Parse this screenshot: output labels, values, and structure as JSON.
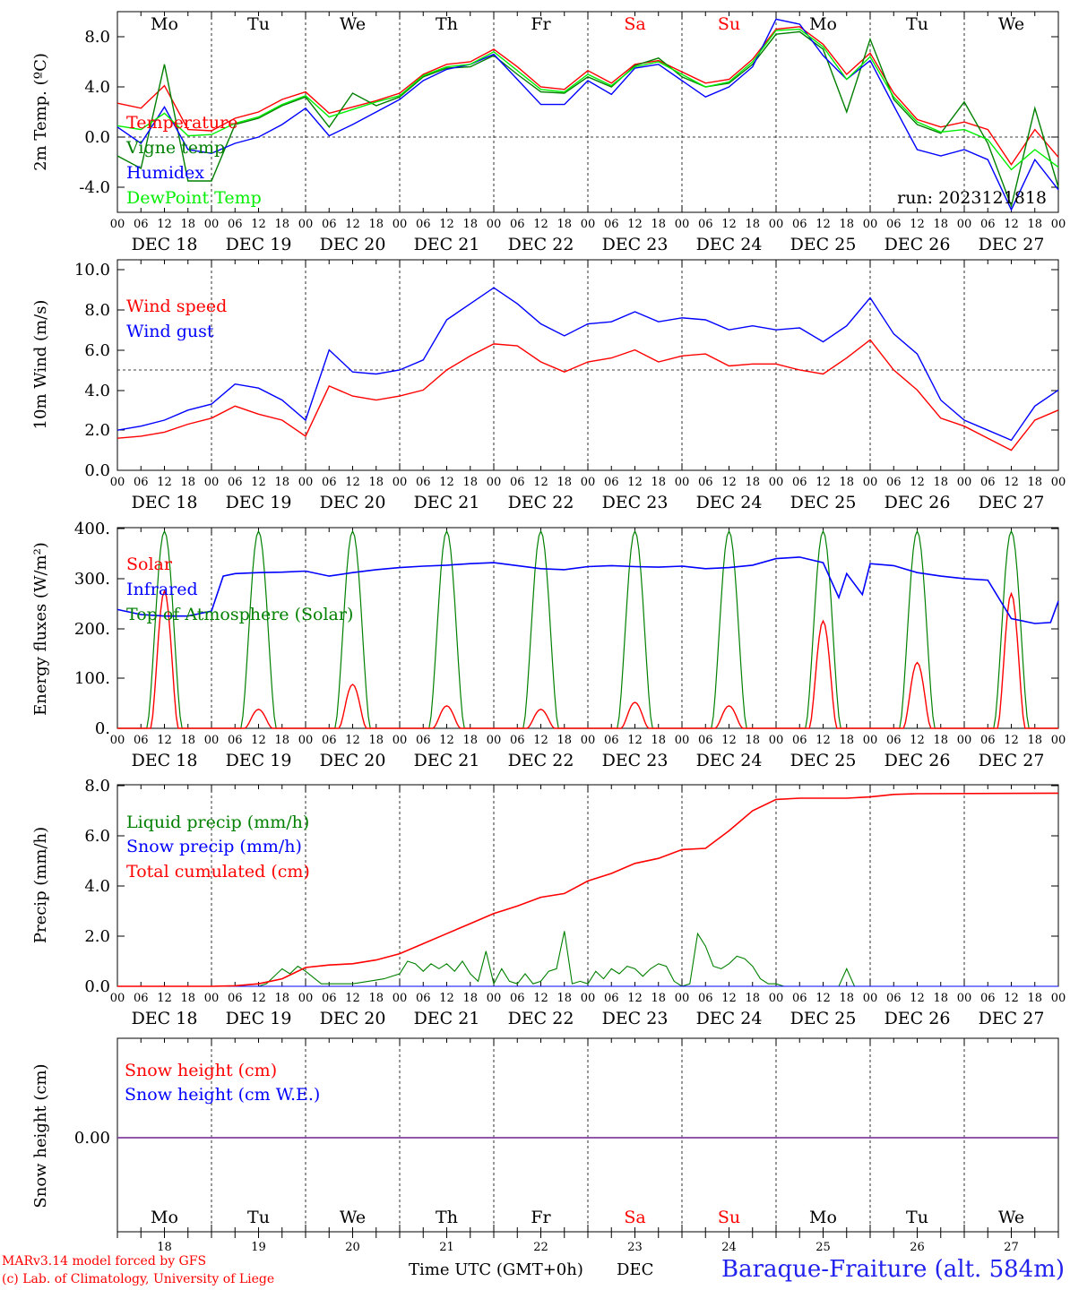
{
  "colors": {
    "red": "#ff0000",
    "green": "#008000",
    "blue": "#0000ff",
    "light_green": "#00ee00",
    "purple": "#8040a0",
    "grid": "#000000"
  },
  "x_ticks": [
    "00",
    "06",
    "12",
    "18"
  ],
  "x_end_tick": "00",
  "dates": [
    "DEC 18",
    "DEC 19",
    "DEC 20",
    "DEC 21",
    "DEC 22",
    "DEC 23",
    "DEC 24",
    "DEC 25",
    "DEC 26",
    "DEC 27"
  ],
  "weekdays": [
    "Mo",
    "Tu",
    "We",
    "Th",
    "Fr",
    "Sa",
    "Su",
    "Mo",
    "Tu",
    "We"
  ],
  "weekend_flags": [
    false,
    false,
    false,
    false,
    false,
    true,
    true,
    false,
    false,
    false
  ],
  "bottom_day_numbers": [
    "18",
    "19",
    "20",
    "21",
    "22",
    "23",
    "24",
    "25",
    "26",
    "27"
  ],
  "footer": {
    "model_line": "MARv3.14 model forced by GFS",
    "copyright_line": "(c) Lab. of Climatology, University of Liege",
    "time_label": "Time UTC (GMT+0h)",
    "month_label": "DEC",
    "station": "Baraque-Fraiture (alt. 584m)"
  },
  "chart_data": [
    {
      "type": "line",
      "ylabel": "2m Temp. (ºC)",
      "y_ticks": [
        "8.0",
        "4.0",
        "0.0",
        "-4.0"
      ],
      "ylim": [
        -6,
        10
      ],
      "x_unit": "hours since DEC 18 00 UTC",
      "xlim": [
        0,
        240
      ],
      "ref_line": 0,
      "annotation": "run: 2023121818",
      "series": [
        {
          "name": "Temperature",
          "color": "#ff0000",
          "x": [
            0,
            6,
            12,
            18,
            24,
            30,
            36,
            42,
            48,
            54,
            60,
            66,
            72,
            78,
            84,
            90,
            96,
            102,
            108,
            114,
            120,
            126,
            132,
            138,
            144,
            150,
            156,
            162,
            168,
            174,
            180,
            186,
            192,
            198,
            204,
            210,
            216,
            222,
            228,
            234,
            240
          ],
          "y": [
            2.7,
            2.3,
            4.1,
            0.6,
            0.5,
            1.5,
            2.0,
            3.0,
            3.6,
            1.9,
            2.4,
            2.9,
            3.5,
            5.0,
            5.8,
            6.0,
            7.0,
            5.6,
            4.0,
            3.8,
            5.3,
            4.3,
            5.8,
            6.1,
            5.2,
            4.3,
            4.6,
            6.2,
            8.6,
            8.8,
            7.4,
            5.0,
            6.7,
            3.5,
            1.4,
            0.8,
            1.2,
            0.6,
            -2.2,
            0.6,
            -1.6
          ]
        },
        {
          "name": "Vigne temp",
          "color": "#008000",
          "x": [
            0,
            6,
            12,
            18,
            24,
            30,
            36,
            42,
            48,
            54,
            60,
            66,
            72,
            78,
            84,
            90,
            96,
            102,
            108,
            114,
            120,
            126,
            132,
            138,
            144,
            150,
            156,
            162,
            168,
            174,
            180,
            186,
            192,
            198,
            204,
            210,
            216,
            222,
            228,
            234,
            240
          ],
          "y": [
            -1.5,
            -2.5,
            5.8,
            -3.5,
            -3.5,
            1.0,
            1.5,
            2.5,
            3.2,
            0.8,
            3.5,
            2.5,
            3.2,
            4.8,
            5.5,
            5.6,
            6.5,
            5.0,
            3.6,
            3.5,
            4.8,
            4.0,
            5.7,
            6.3,
            4.8,
            4.0,
            4.3,
            5.8,
            8.2,
            8.4,
            7.0,
            2.0,
            7.8,
            3.0,
            1.0,
            0.3,
            2.8,
            -0.5,
            -5.5,
            2.3,
            -4.0
          ]
        },
        {
          "name": "Humidex",
          "color": "#0000ff",
          "x": [
            0,
            6,
            12,
            18,
            24,
            30,
            36,
            42,
            48,
            54,
            60,
            66,
            72,
            78,
            84,
            90,
            96,
            102,
            108,
            114,
            120,
            126,
            132,
            138,
            144,
            150,
            156,
            162,
            168,
            174,
            180,
            186,
            192,
            198,
            204,
            210,
            216,
            222,
            228,
            234,
            240
          ],
          "y": [
            0.8,
            -0.5,
            2.4,
            -1.0,
            -1.3,
            -0.5,
            0.0,
            1.0,
            2.3,
            0.1,
            1.0,
            2.0,
            3.0,
            4.5,
            5.4,
            5.8,
            6.6,
            4.6,
            2.6,
            2.6,
            4.5,
            3.4,
            5.5,
            5.8,
            4.5,
            3.2,
            4.0,
            5.6,
            9.4,
            9.0,
            6.5,
            4.6,
            6.1,
            2.5,
            -1.0,
            -1.5,
            -1.0,
            -1.8,
            -5.8,
            -1.8,
            -4.2
          ]
        },
        {
          "name": "DewPoint Temp",
          "color": "#00ee00",
          "x": [
            0,
            6,
            12,
            18,
            24,
            30,
            36,
            42,
            48,
            54,
            60,
            66,
            72,
            78,
            84,
            90,
            96,
            102,
            108,
            114,
            120,
            126,
            132,
            138,
            144,
            150,
            156,
            162,
            168,
            174,
            180,
            186,
            192,
            198,
            204,
            210,
            216,
            222,
            228,
            234,
            240
          ],
          "y": [
            0.9,
            0.6,
            1.9,
            0.1,
            0.2,
            1.1,
            1.6,
            2.6,
            3.3,
            1.6,
            2.2,
            2.8,
            3.3,
            4.9,
            5.6,
            5.8,
            6.8,
            5.3,
            3.8,
            3.6,
            5.0,
            4.1,
            5.6,
            6.0,
            5.0,
            4.0,
            4.4,
            6.0,
            8.5,
            8.6,
            7.2,
            4.6,
            6.4,
            3.2,
            1.2,
            0.4,
            0.6,
            -0.2,
            -2.6,
            -1.0,
            -2.4
          ]
        }
      ]
    },
    {
      "type": "line",
      "ylabel": "10m Wind (m/s)",
      "y_ticks": [
        "10.0",
        "8.0",
        "6.0",
        "4.0",
        "2.0",
        "0.0"
      ],
      "ylim": [
        0,
        10
      ],
      "x_unit": "hours since DEC 18 00 UTC",
      "xlim": [
        0,
        240
      ],
      "ref_line": 5,
      "series": [
        {
          "name": "Wind speed",
          "color": "#ff0000",
          "x": [
            0,
            6,
            12,
            18,
            24,
            30,
            36,
            42,
            48,
            54,
            60,
            66,
            72,
            78,
            84,
            90,
            96,
            102,
            108,
            114,
            120,
            126,
            132,
            138,
            144,
            150,
            156,
            162,
            168,
            174,
            180,
            186,
            192,
            198,
            204,
            210,
            216,
            222,
            228,
            234,
            240
          ],
          "y": [
            1.6,
            1.7,
            1.9,
            2.3,
            2.6,
            3.2,
            2.8,
            2.5,
            1.7,
            4.2,
            3.7,
            3.5,
            3.7,
            4.0,
            5.0,
            5.7,
            6.3,
            6.2,
            5.4,
            4.9,
            5.4,
            5.6,
            6.0,
            5.4,
            5.7,
            5.8,
            5.2,
            5.3,
            5.3,
            5.0,
            4.8,
            5.6,
            6.5,
            5.0,
            4.0,
            2.6,
            2.2,
            1.6,
            1.0,
            2.5,
            3.0
          ]
        },
        {
          "name": "Wind gust",
          "color": "#0000ff",
          "x": [
            0,
            6,
            12,
            18,
            24,
            30,
            36,
            42,
            48,
            54,
            60,
            66,
            72,
            78,
            84,
            90,
            96,
            102,
            108,
            114,
            120,
            126,
            132,
            138,
            144,
            150,
            156,
            162,
            168,
            174,
            180,
            186,
            192,
            198,
            204,
            210,
            216,
            222,
            228,
            234,
            240
          ],
          "y": [
            2.0,
            2.2,
            2.5,
            3.0,
            3.3,
            4.3,
            4.1,
            3.5,
            2.5,
            6.0,
            4.9,
            4.8,
            5.0,
            5.5,
            7.5,
            8.3,
            9.1,
            8.3,
            7.3,
            6.7,
            7.3,
            7.4,
            7.9,
            7.4,
            7.6,
            7.5,
            7.0,
            7.2,
            7.0,
            7.1,
            6.4,
            7.2,
            8.6,
            6.8,
            5.8,
            3.5,
            2.5,
            2.0,
            1.5,
            3.2,
            4.0
          ]
        }
      ]
    },
    {
      "type": "line",
      "ylabel": "Energy fluxes (W/m²)",
      "y_ticks": [
        "400.",
        "300.",
        "200.",
        "100.",
        "0."
      ],
      "ylim": [
        0,
        400
      ],
      "x_unit": "hours since DEC 18 00 UTC",
      "xlim": [
        0,
        240
      ],
      "series": [
        {
          "name": "Solar",
          "color": "#ff0000",
          "daily_peaks": [
            275,
            38,
            88,
            45,
            38,
            52,
            45,
            215,
            132,
            270
          ]
        },
        {
          "name": "Infrared",
          "color": "#0000ff",
          "x": [
            0,
            6,
            12,
            18,
            24,
            27,
            30,
            36,
            42,
            48,
            54,
            60,
            66,
            72,
            78,
            84,
            90,
            96,
            102,
            108,
            114,
            120,
            126,
            132,
            138,
            144,
            150,
            156,
            162,
            168,
            174,
            180,
            184,
            186,
            190,
            192,
            198,
            204,
            210,
            216,
            222,
            228,
            234,
            238,
            240
          ],
          "y": [
            238,
            228,
            225,
            225,
            235,
            305,
            310,
            312,
            313,
            315,
            305,
            312,
            318,
            322,
            325,
            327,
            330,
            332,
            326,
            320,
            318,
            324,
            326,
            324,
            323,
            325,
            320,
            322,
            327,
            340,
            343,
            332,
            262,
            310,
            268,
            330,
            326,
            312,
            305,
            300,
            297,
            220,
            210,
            212,
            255
          ]
        },
        {
          "name": "Top of Atmosphere (Solar)",
          "color": "#008000",
          "daily_peaks": [
            395,
            395,
            395,
            395,
            395,
            395,
            395,
            395,
            395,
            395
          ]
        }
      ]
    },
    {
      "type": "line",
      "ylabel": "Precip (mm/h)",
      "y_ticks": [
        "8.0",
        "6.0",
        "4.0",
        "2.0",
        "0.0"
      ],
      "ylim": [
        0,
        8
      ],
      "x_unit": "hours since DEC 18 00 UTC",
      "xlim": [
        0,
        240
      ],
      "series": [
        {
          "name": "Liquid precip (mm/h)",
          "color": "#008000",
          "x": [
            0,
            24,
            30,
            36,
            38,
            42,
            44,
            46,
            48,
            52,
            56,
            60,
            64,
            68,
            72,
            74,
            76,
            78,
            80,
            82,
            84,
            86,
            88,
            90,
            92,
            94,
            96,
            98,
            100,
            102,
            104,
            106,
            108,
            110,
            112,
            114,
            116,
            118,
            120,
            122,
            124,
            126,
            128,
            130,
            132,
            134,
            136,
            138,
            140,
            142,
            144,
            146,
            148,
            150,
            152,
            154,
            156,
            158,
            160,
            162,
            164,
            166,
            168,
            170,
            180,
            184,
            186,
            188,
            192,
            204,
            240
          ],
          "y": [
            0,
            0,
            0,
            0,
            0.1,
            0.7,
            0.5,
            0.8,
            0.6,
            0.1,
            0.1,
            0.1,
            0.2,
            0.3,
            0.5,
            1.0,
            0.9,
            0.6,
            0.9,
            0.7,
            0.9,
            0.6,
            1.0,
            0.5,
            0.2,
            1.4,
            0.1,
            0.7,
            0.2,
            0.1,
            0.5,
            0.1,
            0.2,
            0.6,
            0.7,
            2.2,
            0.1,
            0.2,
            0.1,
            0.6,
            0.3,
            0.7,
            0.5,
            0.8,
            0.7,
            0.4,
            0.7,
            0.9,
            0.8,
            0.2,
            0.0,
            0.1,
            2.1,
            1.6,
            0.8,
            0.7,
            0.9,
            1.2,
            1.1,
            0.8,
            0.3,
            0.1,
            0.1,
            0.0,
            0.0,
            0.0,
            0.7,
            0.0,
            0.0,
            0.0,
            0.0
          ]
        },
        {
          "name": "Snow precip (mm/h)",
          "color": "#0000ff",
          "x": [
            0,
            240
          ],
          "y": [
            0,
            0
          ]
        },
        {
          "name": "Total cumulated (cm)",
          "color": "#ff0000",
          "x": [
            0,
            24,
            30,
            36,
            42,
            48,
            54,
            60,
            66,
            72,
            78,
            84,
            90,
            96,
            102,
            108,
            114,
            120,
            126,
            132,
            138,
            144,
            150,
            156,
            162,
            168,
            174,
            180,
            186,
            192,
            198,
            204,
            240
          ],
          "y": [
            0,
            0,
            0.02,
            0.1,
            0.3,
            0.75,
            0.85,
            0.9,
            1.05,
            1.3,
            1.7,
            2.1,
            2.5,
            2.9,
            3.2,
            3.55,
            3.7,
            4.2,
            4.5,
            4.9,
            5.1,
            5.45,
            5.5,
            6.2,
            7.0,
            7.45,
            7.5,
            7.5,
            7.5,
            7.55,
            7.65,
            7.68,
            7.7
          ]
        }
      ]
    },
    {
      "type": "line",
      "ylabel": "Snow height (cm)",
      "y_ticks": [
        "0.00"
      ],
      "x_unit": "hours since DEC 18 00 UTC",
      "xlim": [
        0,
        240
      ],
      "series": [
        {
          "name": "Snow height (cm)",
          "color": "#ff0000",
          "x": [
            0,
            240
          ],
          "y": [
            0,
            0
          ]
        },
        {
          "name": "Snow height (cm W.E.)",
          "color": "#0000ff",
          "x": [
            0,
            240
          ],
          "y": [
            0,
            0
          ]
        }
      ]
    }
  ]
}
